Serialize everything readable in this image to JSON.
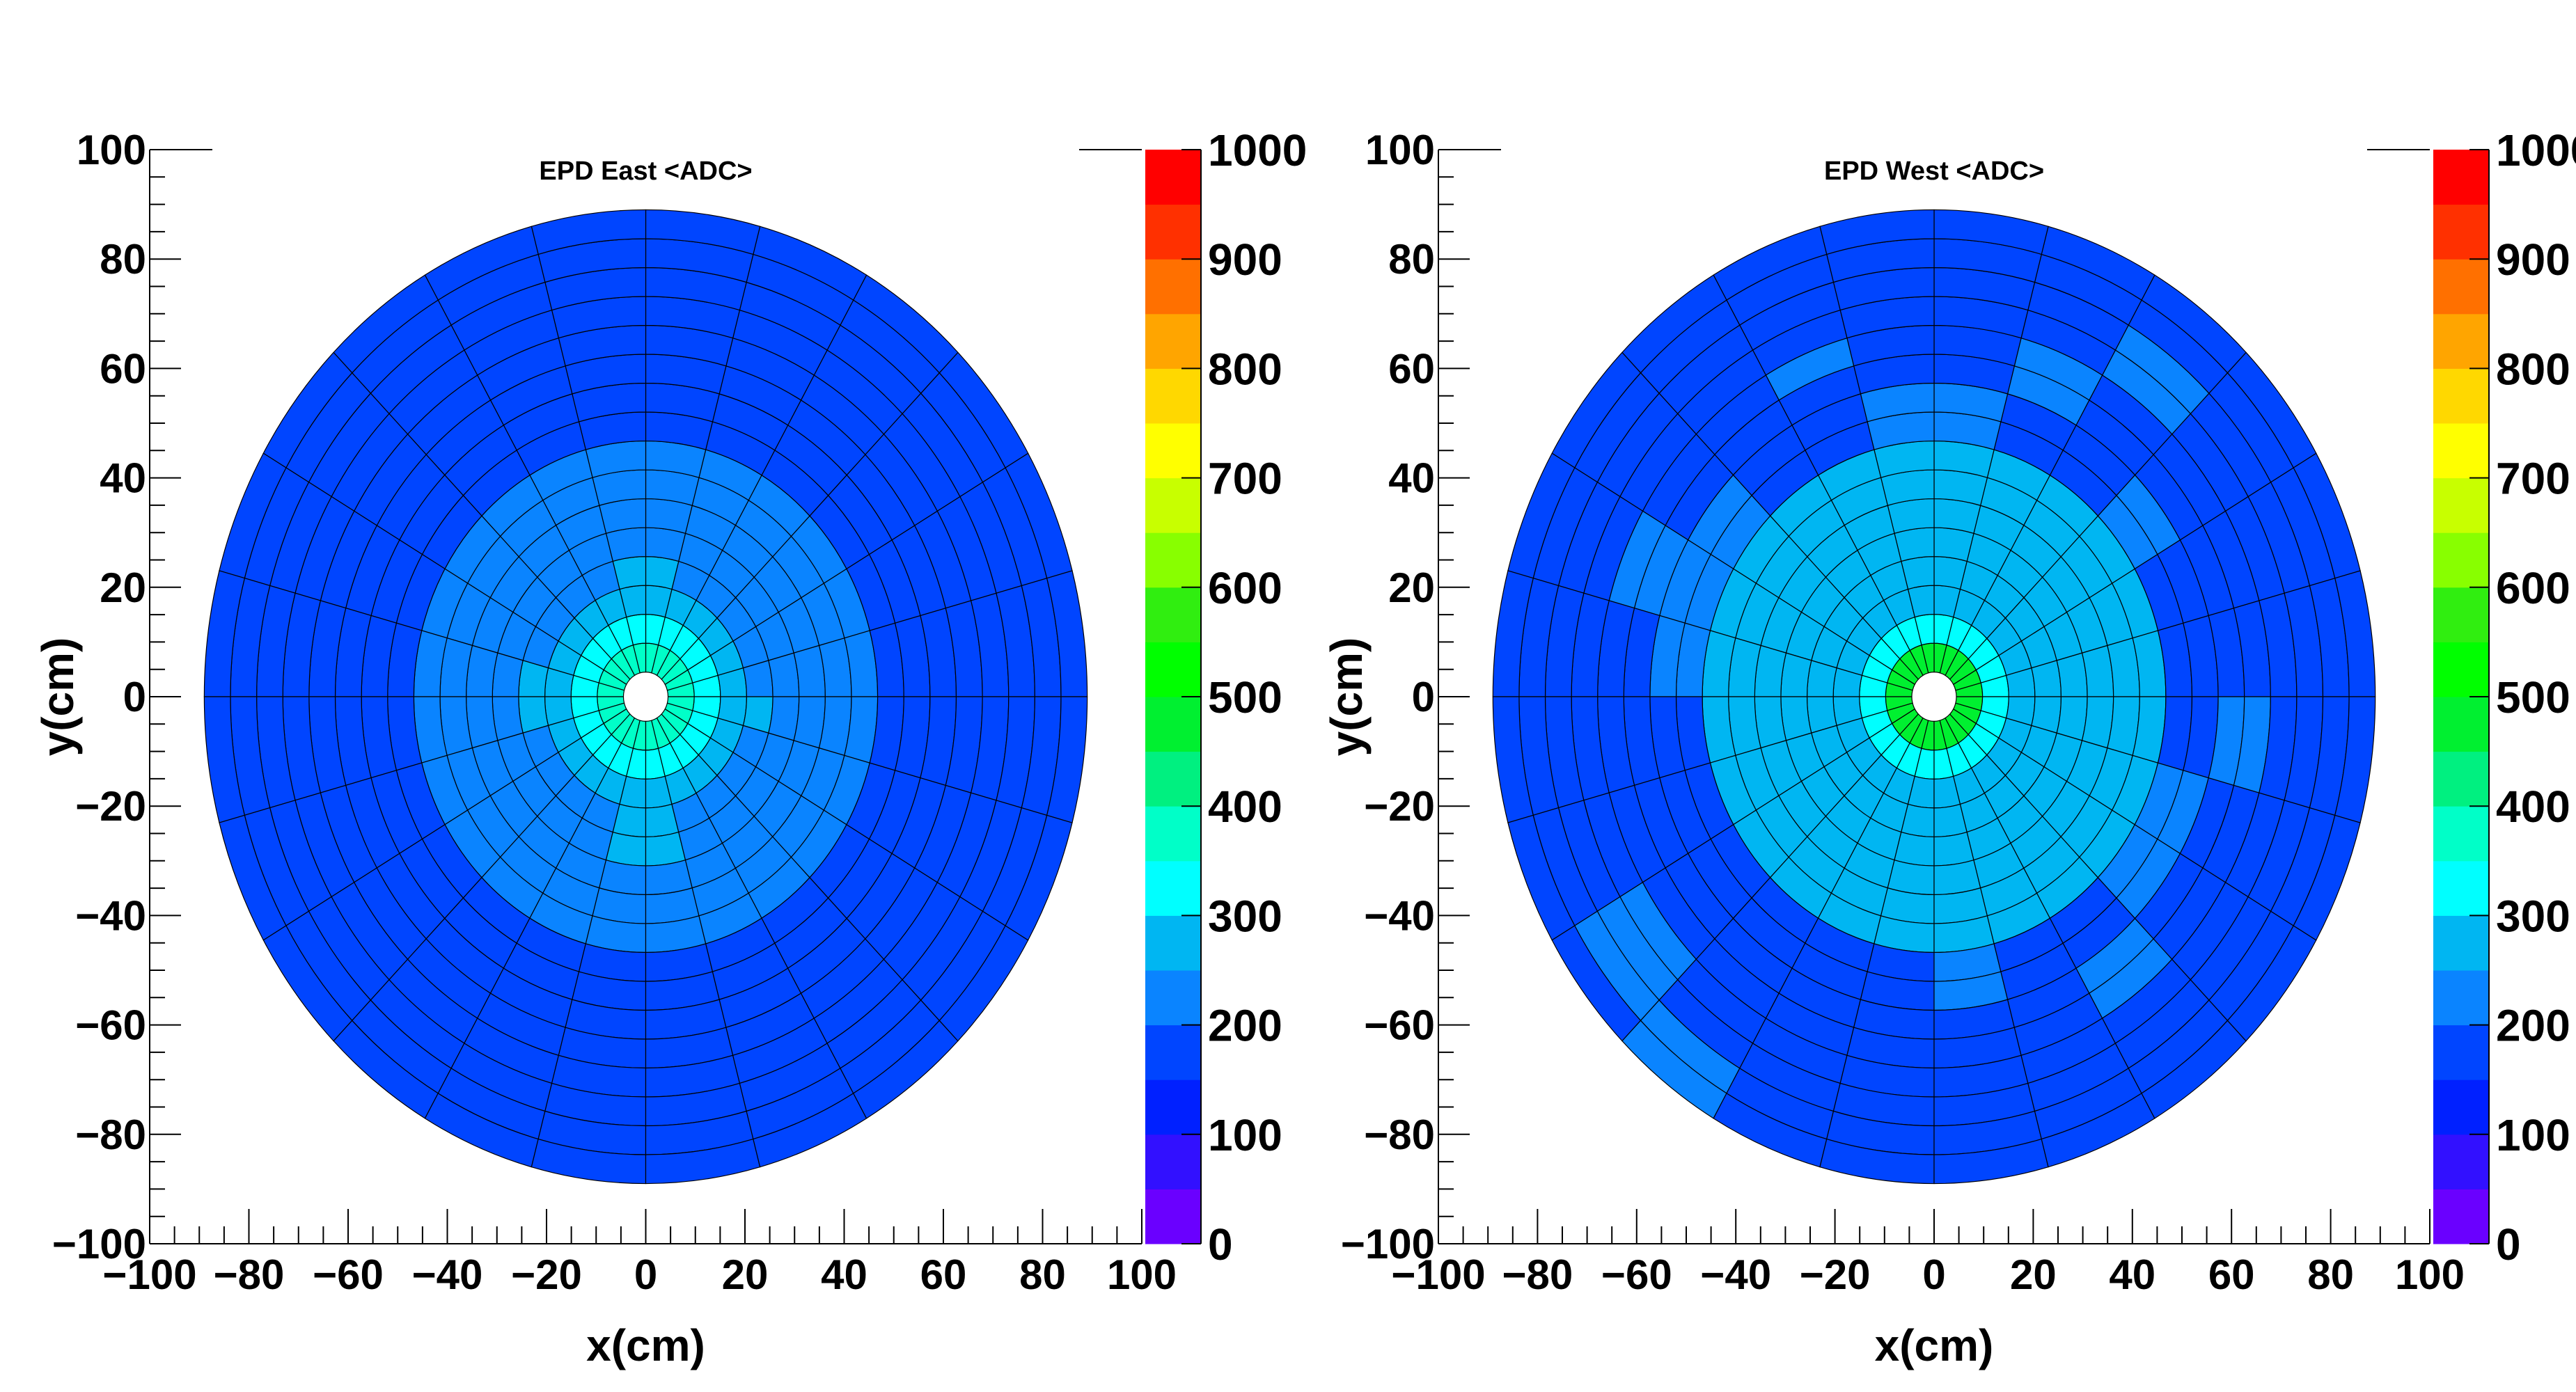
{
  "chart_data": [
    {
      "type": "heatmap",
      "title": "EPD East <ADC>",
      "xlabel": "x(cm)",
      "ylabel": "y(cm)",
      "xlim": [
        -100,
        100
      ],
      "ylim": [
        -100,
        100
      ],
      "x_ticks": [
        "−100",
        "−80",
        "−60",
        "−40",
        "−20",
        "0",
        "20",
        "40",
        "60",
        "80",
        "100"
      ],
      "y_ticks": [
        "−100",
        "−80",
        "−60",
        "−40",
        "−20",
        "0",
        "20",
        "40",
        "60",
        "80",
        "100"
      ],
      "z_range": [
        0,
        1000
      ],
      "z_ticks": [
        "0",
        "100",
        "200",
        "300",
        "400",
        "500",
        "600",
        "700",
        "800",
        "900",
        "1000"
      ],
      "inner_radius_cm": 4.5,
      "outer_radius_cm": 89,
      "rings": 16,
      "sectors": 24,
      "background_value": 180,
      "tiles": [
        {
          "rings": [
            0,
            0
          ],
          "sectors": [
            0,
            23
          ],
          "value": 370
        },
        {
          "rings": [
            1,
            1
          ],
          "sectors": [
            0,
            23
          ],
          "value": 320
        },
        {
          "rings": [
            2,
            2
          ],
          "sectors": [
            0,
            23
          ],
          "value": 270
        },
        {
          "rings": [
            3,
            5
          ],
          "sectors": [
            0,
            23
          ],
          "value": 240
        },
        {
          "rings": [
            6,
            7
          ],
          "sectors": [
            0,
            23
          ],
          "value": 210
        },
        {
          "rings": [
            2,
            3
          ],
          "sectors": [
            5,
            6
          ],
          "value": 280
        },
        {
          "rings": [
            2,
            3
          ],
          "sectors": [
            23,
            23
          ],
          "value": 280
        },
        {
          "rings": [
            3,
            4
          ],
          "sectors": [
            17,
            18
          ],
          "value": 270
        },
        {
          "rings": [
            2,
            3
          ],
          "sectors": [
            11,
            12
          ],
          "value": 270
        }
      ],
      "colorbar_colors": [
        "#6a00ff",
        "#3210ff",
        "#0020ff",
        "#0045ff",
        "#0a84ff",
        "#00b6f2",
        "#00ffff",
        "#00ffc8",
        "#00f080",
        "#00f030",
        "#00ff00",
        "#30ee10",
        "#88ff00",
        "#c8ff00",
        "#ffff00",
        "#ffd800",
        "#ffa500",
        "#ff7000",
        "#ff3000",
        "#ff0000"
      ]
    },
    {
      "type": "heatmap",
      "title": "EPD West <ADC>",
      "xlabel": "x(cm)",
      "ylabel": "y(cm)",
      "xlim": [
        -100,
        100
      ],
      "ylim": [
        -100,
        100
      ],
      "x_ticks": [
        "−100",
        "−80",
        "−60",
        "−40",
        "−20",
        "0",
        "20",
        "40",
        "60",
        "80",
        "100"
      ],
      "y_ticks": [
        "−100",
        "−80",
        "−60",
        "−40",
        "−20",
        "0",
        "20",
        "40",
        "60",
        "80",
        "100"
      ],
      "z_range": [
        0,
        1000
      ],
      "z_ticks": [
        "0",
        "100",
        "200",
        "300",
        "400",
        "500",
        "600",
        "700",
        "800",
        "900",
        "1000"
      ],
      "inner_radius_cm": 4.5,
      "outer_radius_cm": 89,
      "rings": 16,
      "sectors": 24,
      "background_value": 180,
      "tiles": [
        {
          "rings": [
            0,
            0
          ],
          "sectors": [
            0,
            23
          ],
          "value": 470
        },
        {
          "rings": [
            1,
            1
          ],
          "sectors": [
            0,
            23
          ],
          "value": 330
        },
        {
          "rings": [
            2,
            2
          ],
          "sectors": [
            0,
            23
          ],
          "value": 290
        },
        {
          "rings": [
            3,
            7
          ],
          "sectors": [
            0,
            23
          ],
          "value": 270
        },
        {
          "rings": [
            8,
            9
          ],
          "sectors": [
            2,
            2
          ],
          "value": 230
        },
        {
          "rings": [
            8,
            9
          ],
          "sectors": [
            5,
            6
          ],
          "value": 230
        },
        {
          "rings": [
            8,
            9
          ],
          "sectors": [
            9,
            11
          ],
          "value": 230
        },
        {
          "rings": [
            8,
            9
          ],
          "sectors": [
            21,
            22
          ],
          "value": 230
        },
        {
          "rings": [
            8,
            9
          ],
          "sectors": [
            18,
            18
          ],
          "value": 230
        },
        {
          "rings": [
            10,
            11
          ],
          "sectors": [
            23,
            23
          ],
          "value": 220
        },
        {
          "rings": [
            10,
            11
          ],
          "sectors": [
            4,
            4
          ],
          "value": 220
        },
        {
          "rings": [
            12,
            13
          ],
          "sectors": [
            3,
            3
          ],
          "value": 220
        },
        {
          "rings": [
            11,
            11
          ],
          "sectors": [
            7,
            7
          ],
          "value": 220
        },
        {
          "rings": [
            12,
            14
          ],
          "sectors": [
            14,
            14
          ],
          "value": 220
        },
        {
          "rings": [
            10,
            11
          ],
          "sectors": [
            10,
            10
          ],
          "value": 220
        },
        {
          "rings": [
            14,
            15
          ],
          "sectors": [
            15,
            15
          ],
          "value": 220
        },
        {
          "rings": [
            10,
            11
          ],
          "sectors": [
            20,
            20
          ],
          "value": 220
        }
      ],
      "colorbar_colors": [
        "#6a00ff",
        "#3210ff",
        "#0020ff",
        "#0045ff",
        "#0a84ff",
        "#00b6f2",
        "#00ffff",
        "#00ffc8",
        "#00f080",
        "#00f030",
        "#00ff00",
        "#30ee10",
        "#88ff00",
        "#c8ff00",
        "#ffff00",
        "#ffd800",
        "#ffa500",
        "#ff7000",
        "#ff3000",
        "#ff0000"
      ]
    }
  ]
}
